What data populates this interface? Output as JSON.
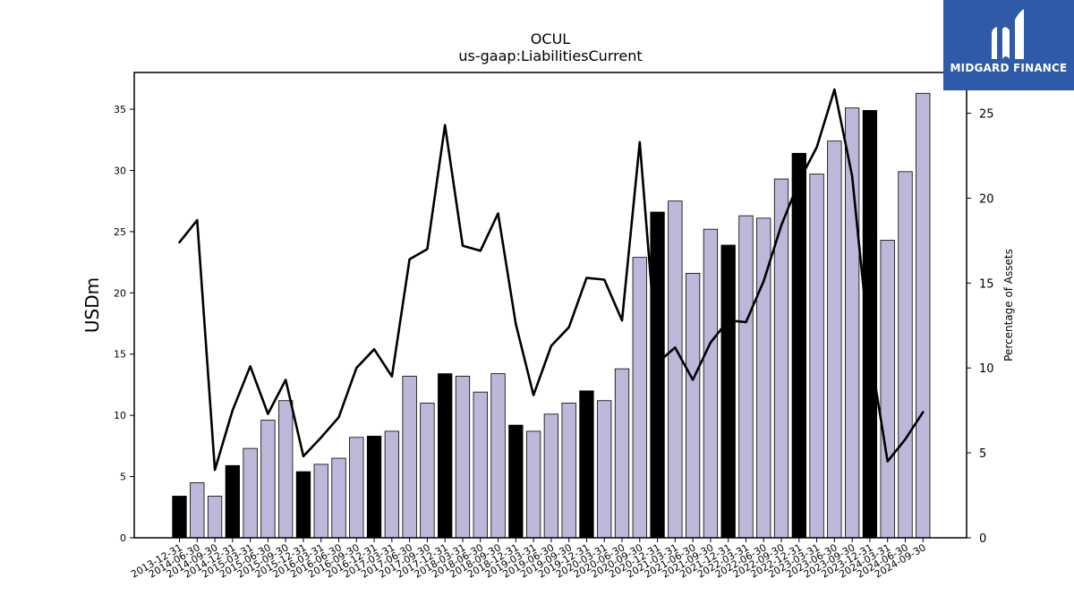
{
  "brand": {
    "name": "MIDGARD FINANCE",
    "color": "#2f5aa8"
  },
  "chart_data": {
    "type": "bar",
    "title": "OCUL",
    "subtitle": "us-gaap:LiabilitiesCurrent",
    "ylabel": "USDm",
    "y2label": "Percentage of Assets",
    "ylim": [
      0,
      38
    ],
    "y2lim": [
      0,
      27.4
    ],
    "yticks": [
      0,
      5,
      10,
      15,
      20,
      25,
      30,
      35
    ],
    "y2ticks": [
      0,
      5,
      10,
      15,
      20,
      25
    ],
    "grid": false,
    "colors": {
      "annual_bar": "#000000",
      "quarter_bar": "#bcb8da",
      "line": "#000000"
    },
    "categories": [
      "2013-12-31",
      "2014-06-30",
      "2014-09-30",
      "2014-12-31",
      "2015-03-31",
      "2015-06-30",
      "2015-09-30",
      "2015-12-31",
      "2016-03-31",
      "2016-06-30",
      "2016-09-30",
      "2016-12-31",
      "2017-03-31",
      "2017-06-30",
      "2017-09-30",
      "2017-12-31",
      "2018-03-31",
      "2018-06-30",
      "2018-09-30",
      "2018-12-31",
      "2019-03-31",
      "2019-06-30",
      "2019-09-30",
      "2019-12-31",
      "2020-03-31",
      "2020-06-30",
      "2020-09-30",
      "2020-12-31",
      "2021-03-31",
      "2021-06-30",
      "2021-09-30",
      "2021-12-31",
      "2022-03-31",
      "2022-06-30",
      "2022-09-30",
      "2022-12-31",
      "2023-03-31",
      "2023-06-30",
      "2023-09-30",
      "2023-12-31",
      "2024-03-31",
      "2024-06-30",
      "2024-09-30"
    ],
    "series": [
      {
        "values": [
          3.4,
          4.5,
          3.4,
          5.9,
          7.3,
          9.6,
          11.2,
          5.4,
          6.0,
          6.5,
          8.2,
          8.3,
          8.7,
          13.2,
          11.0,
          13.4,
          13.2,
          11.9,
          13.4,
          9.2,
          8.7,
          10.1,
          11.0,
          12.0,
          11.2,
          13.8,
          22.9,
          26.6,
          27.5,
          21.6,
          25.2,
          23.9,
          26.3,
          26.1,
          29.3,
          31.4,
          29.7,
          32.4,
          35.1,
          34.9,
          24.3,
          29.9,
          36.3
        ]
      },
      {
        "axis": "right",
        "values": [
          17.4,
          18.7,
          4.0,
          7.5,
          10.1,
          7.3,
          9.3,
          4.8,
          5.9,
          7.1,
          10.0,
          11.1,
          9.5,
          16.4,
          17.0,
          24.3,
          17.2,
          16.9,
          19.1,
          12.6,
          8.4,
          11.3,
          12.4,
          15.3,
          15.2,
          12.8,
          23.3,
          10.3,
          11.2,
          9.3,
          11.5,
          12.8,
          12.7,
          15.1,
          18.4,
          21.0,
          23.0,
          26.4,
          21.3,
          11.0,
          4.5,
          5.8,
          7.4
        ]
      }
    ]
  }
}
